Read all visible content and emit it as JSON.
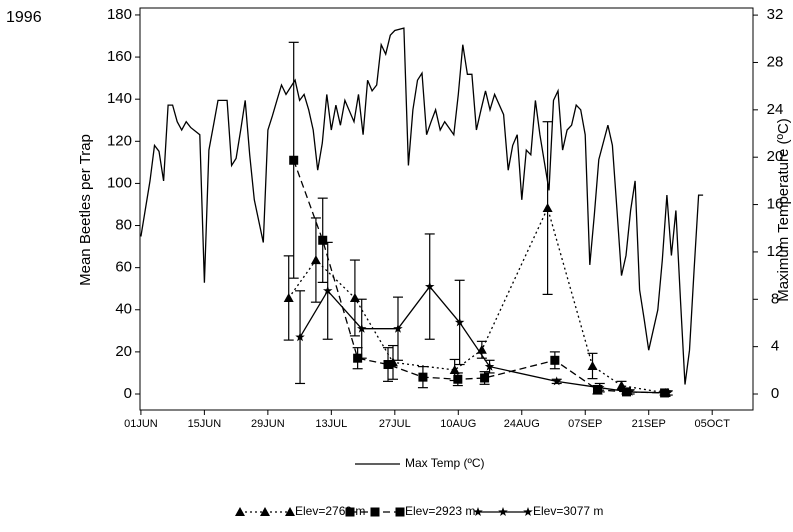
{
  "chart_data": {
    "type": "line",
    "corner_label": "1996",
    "y_label": "Mean Beetles per Trap",
    "y2_label": "Maximum Temperature (ºC)",
    "xlim": [
      -0.2,
      135
    ],
    "xticks": [
      {
        "value": 0,
        "label": "01JUN"
      },
      {
        "value": 14,
        "label": "15JUN"
      },
      {
        "value": 28,
        "label": "29JUN"
      },
      {
        "value": 42,
        "label": "13JUL"
      },
      {
        "value": 56,
        "label": "27JUL"
      },
      {
        "value": 70,
        "label": "10AUG"
      },
      {
        "value": 84,
        "label": "24AUG"
      },
      {
        "value": 98,
        "label": "07SEP"
      },
      {
        "value": 112,
        "label": "21SEP"
      },
      {
        "value": 126,
        "label": "05OCT"
      }
    ],
    "ylim": [
      -7.6,
      183.3
    ],
    "yticks": [
      0,
      20,
      40,
      60,
      80,
      100,
      120,
      140,
      160,
      180
    ],
    "y2lim": [
      -1.35,
      32.6
    ],
    "y2ticks": [
      0,
      4,
      8,
      12,
      16,
      20,
      24,
      28,
      32
    ],
    "series": [
      {
        "name": "Max Temp (ºC)",
        "axis": "y2",
        "color": "#000000",
        "line_style": "solid",
        "marker": "none",
        "x": [
          0,
          2,
          3,
          4,
          5,
          6,
          7,
          8,
          9,
          10,
          11,
          13,
          14,
          15,
          16,
          17,
          19,
          20,
          21,
          22,
          23,
          24,
          25,
          27,
          28,
          29,
          30,
          31,
          32,
          34,
          35,
          36,
          37,
          38,
          39,
          40,
          41,
          42,
          43,
          44,
          45,
          47,
          48,
          49,
          50,
          51,
          52,
          53,
          54,
          55,
          56,
          58,
          59,
          60,
          61,
          62,
          63,
          64,
          65,
          66,
          67,
          69,
          70,
          71,
          72,
          73,
          74,
          75,
          76,
          77,
          78,
          80,
          81,
          82,
          83,
          84,
          85,
          86,
          87,
          88,
          90,
          91,
          92,
          93,
          94,
          95,
          96,
          97,
          98,
          99,
          100,
          101,
          103,
          104,
          105,
          106,
          107,
          108,
          109,
          110,
          111,
          112,
          114,
          115,
          116,
          117,
          118,
          119,
          120,
          121,
          122,
          123,
          124
        ],
        "values": [
          13.3,
          18,
          21,
          20.5,
          18,
          24.4,
          24.4,
          23,
          22.3,
          23,
          22.5,
          21.9,
          9.4,
          20.6,
          22.7,
          24.8,
          24.8,
          19.3,
          19.9,
          22.3,
          24.8,
          20.2,
          16.4,
          12.8,
          22.3,
          23.5,
          24.8,
          26.1,
          25.3,
          26.5,
          24.8,
          25.3,
          24,
          22.3,
          18.9,
          21.2,
          25.3,
          22.3,
          24.4,
          22.7,
          24.8,
          23,
          25.3,
          21.9,
          26.5,
          25.6,
          26.1,
          29.5,
          28.7,
          30.3,
          30.7,
          30.9,
          19.3,
          24,
          26.5,
          27.1,
          21.9,
          23,
          24,
          22.3,
          23,
          21.9,
          25.3,
          29.5,
          27,
          27,
          22.3,
          24,
          25.6,
          24,
          25.3,
          23.6,
          18.9,
          21,
          21.9,
          16.4,
          20.6,
          20.2,
          24.8,
          21.9,
          17.2,
          24.8,
          25.6,
          20.6,
          22.3,
          22.7,
          24.4,
          24,
          21.9,
          10.9,
          15.1,
          19.8,
          22.7,
          21,
          15.5,
          10,
          11.7,
          15.5,
          18,
          8.8,
          6.3,
          3.7,
          7.1,
          11.3,
          16.8,
          11.7,
          15.5,
          7.9,
          0.8,
          3.7,
          10.5,
          16.8,
          16.8
        ]
      },
      {
        "name": "Elev=2769 m",
        "color": "#000000",
        "line_style": "dotted",
        "marker": "triangle",
        "x": [
          32.6,
          38.6,
          47.2,
          55.6,
          69.2,
          75.2,
          89.7,
          99.6,
          106,
          115.7
        ],
        "values": [
          45.6,
          63.6,
          45.6,
          15,
          11.4,
          21,
          88.3,
          13.3,
          4,
          0.5
        ],
        "errors": [
          20,
          20,
          18,
          8,
          5,
          4,
          41,
          6,
          2,
          1
        ]
      },
      {
        "name": "Elev=2923 m",
        "color": "#000000",
        "line_style": "dashed",
        "marker": "square",
        "x": [
          33.7,
          40.1,
          47.8,
          54.5,
          62.2,
          69.9,
          75.8,
          91.3,
          100.7,
          107.1,
          115.5
        ],
        "values": [
          111,
          73,
          17,
          14,
          8,
          7,
          7.6,
          16,
          2,
          1,
          0.5
        ],
        "errors": [
          56,
          20,
          5,
          8,
          5,
          3,
          3,
          4,
          2,
          1,
          1
        ]
      },
      {
        "name": "Elev=3077 m",
        "color": "#000000",
        "line_style": "solid",
        "marker": "star",
        "x": [
          35.1,
          41.2,
          48.7,
          56.7,
          63.7,
          70.3,
          76.9,
          91.7,
          101.2,
          107.8,
          116.2
        ],
        "values": [
          27,
          49,
          31,
          31,
          51,
          34,
          13,
          6,
          3,
          1,
          0.5
        ],
        "errors": [
          22,
          23,
          14,
          15,
          25,
          20,
          3,
          1,
          2,
          1,
          1
        ]
      }
    ]
  }
}
